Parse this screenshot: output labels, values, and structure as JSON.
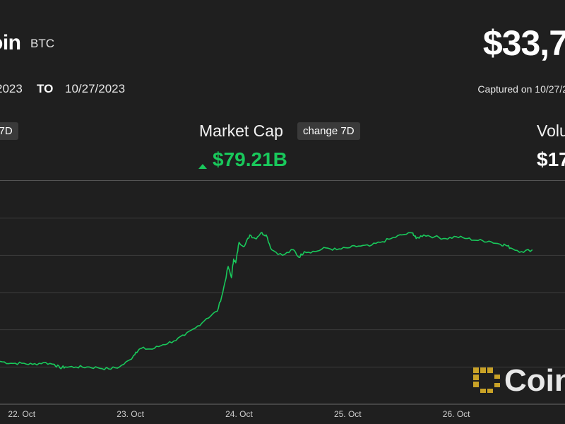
{
  "header": {
    "coin_name": "oin",
    "coin_symbol": "BTC",
    "price": "$33,7",
    "date_from": "2023",
    "date_to_label": "TO",
    "date_to": "10/27/2023",
    "captured": "Captured on 10/27/2"
  },
  "stats": [
    {
      "label": "",
      "badge": "e 7D",
      "value": ""
    },
    {
      "label": "Market Cap",
      "badge": "change 7D",
      "value": "$79.21B"
    },
    {
      "label": "Volu",
      "badge": "",
      "value": "$17"
    }
  ],
  "colors": {
    "background": "#1f1f1f",
    "line": "#19c85b",
    "grid": "#3d3d3d",
    "badge": "#3a3a3a"
  },
  "icons": {
    "up_arrow": "triangle-up-icon",
    "logo": "coindesk-logo-icon"
  },
  "watermark": {
    "text": "Coin"
  },
  "chart_data": {
    "type": "line",
    "title": "",
    "xlabel": "",
    "ylabel": "",
    "x_ticks": [
      "22. Oct",
      "23. Oct",
      "24. Oct",
      "25. Oct",
      "26. Oct"
    ],
    "xlim": [
      21.8,
      27.0
    ],
    "ylim": [
      0,
      6
    ],
    "grid": true,
    "series": [
      {
        "x": [
          21.8,
          21.9,
          22.0,
          22.1,
          22.2,
          22.3,
          22.35,
          22.4,
          22.5,
          22.6,
          22.7,
          22.8,
          22.9,
          23.0,
          23.05,
          23.1,
          23.2,
          23.3,
          23.4,
          23.5,
          23.6,
          23.7,
          23.8,
          23.85,
          23.9,
          23.93,
          23.95,
          23.97,
          24.0,
          24.05,
          24.1,
          24.15,
          24.2,
          24.25,
          24.3,
          24.4,
          24.5,
          24.55,
          24.6,
          24.7,
          24.8,
          24.9,
          25.0,
          25.1,
          25.2,
          25.3,
          25.4,
          25.5,
          25.6,
          25.63,
          25.7,
          25.8,
          25.9,
          26.0,
          26.1,
          26.2,
          26.3,
          26.4,
          26.45,
          26.5,
          26.6,
          26.7
        ],
        "y": [
          1.15,
          1.1,
          1.1,
          1.07,
          1.12,
          1.07,
          0.98,
          1.0,
          1.0,
          1.0,
          0.98,
          0.95,
          1.0,
          1.2,
          1.4,
          1.5,
          1.48,
          1.6,
          1.7,
          1.85,
          2.05,
          2.3,
          2.5,
          3.0,
          3.7,
          3.4,
          3.9,
          3.8,
          4.35,
          4.25,
          4.55,
          4.45,
          4.6,
          4.55,
          4.15,
          4.0,
          4.15,
          3.95,
          4.1,
          4.1,
          4.2,
          4.15,
          4.2,
          4.25,
          4.25,
          4.35,
          4.45,
          4.55,
          4.6,
          4.45,
          4.55,
          4.5,
          4.45,
          4.5,
          4.45,
          4.4,
          4.38,
          4.3,
          4.28,
          4.2,
          4.1,
          4.15
        ]
      }
    ]
  }
}
